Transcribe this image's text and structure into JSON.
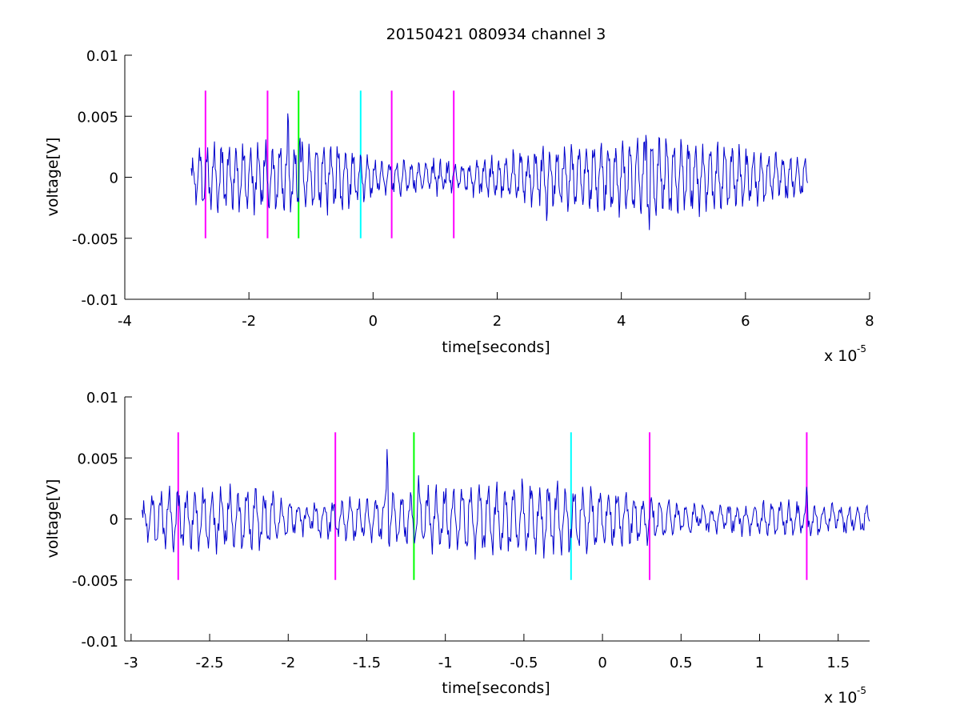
{
  "chart_data": [
    {
      "type": "line",
      "title": "20150421 080934 channel 3",
      "xlabel": "time[seconds]",
      "ylabel": "voltage[V]",
      "xlim": [
        -4e-05,
        8e-05
      ],
      "ylim": [
        -0.01,
        0.01
      ],
      "x_ticks": [
        "-4",
        "-2",
        "0",
        "2",
        "4",
        "6",
        "8"
      ],
      "y_ticks": [
        "-0.01",
        "-0.005",
        "0",
        "0.005",
        "0.01"
      ],
      "x_multiplier": "x 10",
      "x_multiplier_exp": "-5",
      "series": [
        {
          "color": "#0000cc",
          "x_start": -2.93e-05,
          "x_end": 7e-05,
          "envelope": [
            {
              "t": -2.93e-05,
              "amp": 0.001
            },
            {
              "t": -2.8e-05,
              "amp": 0.0028
            },
            {
              "t": -1.5e-05,
              "amp": 0.003
            },
            {
              "t": -6e-06,
              "amp": 0.003
            },
            {
              "t": 0.0,
              "amp": 0.0016
            },
            {
              "t": 1.5e-05,
              "amp": 0.0012
            },
            {
              "t": 2.5e-05,
              "amp": 0.0022
            },
            {
              "t": 4.5e-05,
              "amp": 0.0035
            },
            {
              "t": 6e-05,
              "amp": 0.0025
            },
            {
              "t": 7e-05,
              "amp": 0.0018
            }
          ],
          "spikes": [
            {
              "t": -1.37e-05,
              "v": 0.0065
            },
            {
              "t": -1.18e-05,
              "v": 0.004
            },
            {
              "t": 2.8e-05,
              "v": -0.0043
            },
            {
              "t": 4.4e-05,
              "v": 0.0042
            },
            {
              "t": 4.45e-05,
              "v": -0.0046
            }
          ]
        }
      ],
      "markers": [
        {
          "x": -2.7e-05,
          "color": "#ff00ff",
          "ymin": -0.005,
          "ymax": 0.0071
        },
        {
          "x": -1.7e-05,
          "color": "#ff00ff",
          "ymin": -0.005,
          "ymax": 0.0071
        },
        {
          "x": -1.2e-05,
          "color": "#00ff00",
          "ymin": -0.005,
          "ymax": 0.0071
        },
        {
          "x": -2e-06,
          "color": "#00ffff",
          "ymin": -0.005,
          "ymax": 0.0071
        },
        {
          "x": 3e-06,
          "color": "#ff00ff",
          "ymin": -0.005,
          "ymax": 0.0071
        },
        {
          "x": 1.3e-05,
          "color": "#ff00ff",
          "ymin": -0.005,
          "ymax": 0.0071
        }
      ]
    },
    {
      "type": "line",
      "xlabel": "time[seconds]",
      "ylabel": "voltage[V]",
      "xlim": [
        -3.04e-05,
        1.7e-05
      ],
      "ylim": [
        -0.01,
        0.01
      ],
      "x_ticks": [
        "-3",
        "-2.5",
        "-2",
        "-1.5",
        "-1",
        "-0.5",
        "0",
        "0.5",
        "1",
        "1.5"
      ],
      "y_ticks": [
        "-0.01",
        "-0.005",
        "0",
        "0.005",
        "0.01"
      ],
      "x_multiplier": "x 10",
      "x_multiplier_exp": "-5",
      "series": [
        {
          "color": "#0000cc",
          "x_start": -2.93e-05,
          "x_end": 1.7e-05,
          "envelope": [
            {
              "t": -2.93e-05,
              "amp": 0.001
            },
            {
              "t": -2.85e-05,
              "amp": 0.0026
            },
            {
              "t": -2.2e-05,
              "amp": 0.0028
            },
            {
              "t": -1.9e-05,
              "amp": 0.0012
            },
            {
              "t": -1.5e-05,
              "amp": 0.002
            },
            {
              "t": -9e-06,
              "amp": 0.003
            },
            {
              "t": -3e-06,
              "amp": 0.003
            },
            {
              "t": 3e-06,
              "amp": 0.002
            },
            {
              "t": 6e-06,
              "amp": 0.001
            },
            {
              "t": 1.2e-05,
              "amp": 0.0014
            },
            {
              "t": 1.7e-05,
              "amp": 0.0012
            }
          ],
          "spikes": [
            {
              "t": -1.37e-05,
              "v": 0.0065
            },
            {
              "t": -1.17e-05,
              "v": 0.0038
            },
            {
              "t": 1.3e-05,
              "v": 0.003
            }
          ]
        }
      ],
      "markers": [
        {
          "x": -2.7e-05,
          "color": "#ff00ff",
          "ymin": -0.005,
          "ymax": 0.0071
        },
        {
          "x": -1.7e-05,
          "color": "#ff00ff",
          "ymin": -0.005,
          "ymax": 0.0071
        },
        {
          "x": -1.2e-05,
          "color": "#00ff00",
          "ymin": -0.005,
          "ymax": 0.0071
        },
        {
          "x": -2e-06,
          "color": "#00ffff",
          "ymin": -0.005,
          "ymax": 0.0071
        },
        {
          "x": 3e-06,
          "color": "#ff00ff",
          "ymin": -0.005,
          "ymax": 0.0071
        },
        {
          "x": 1.3e-05,
          "color": "#ff00ff",
          "ymin": -0.005,
          "ymax": 0.0071
        }
      ]
    }
  ]
}
